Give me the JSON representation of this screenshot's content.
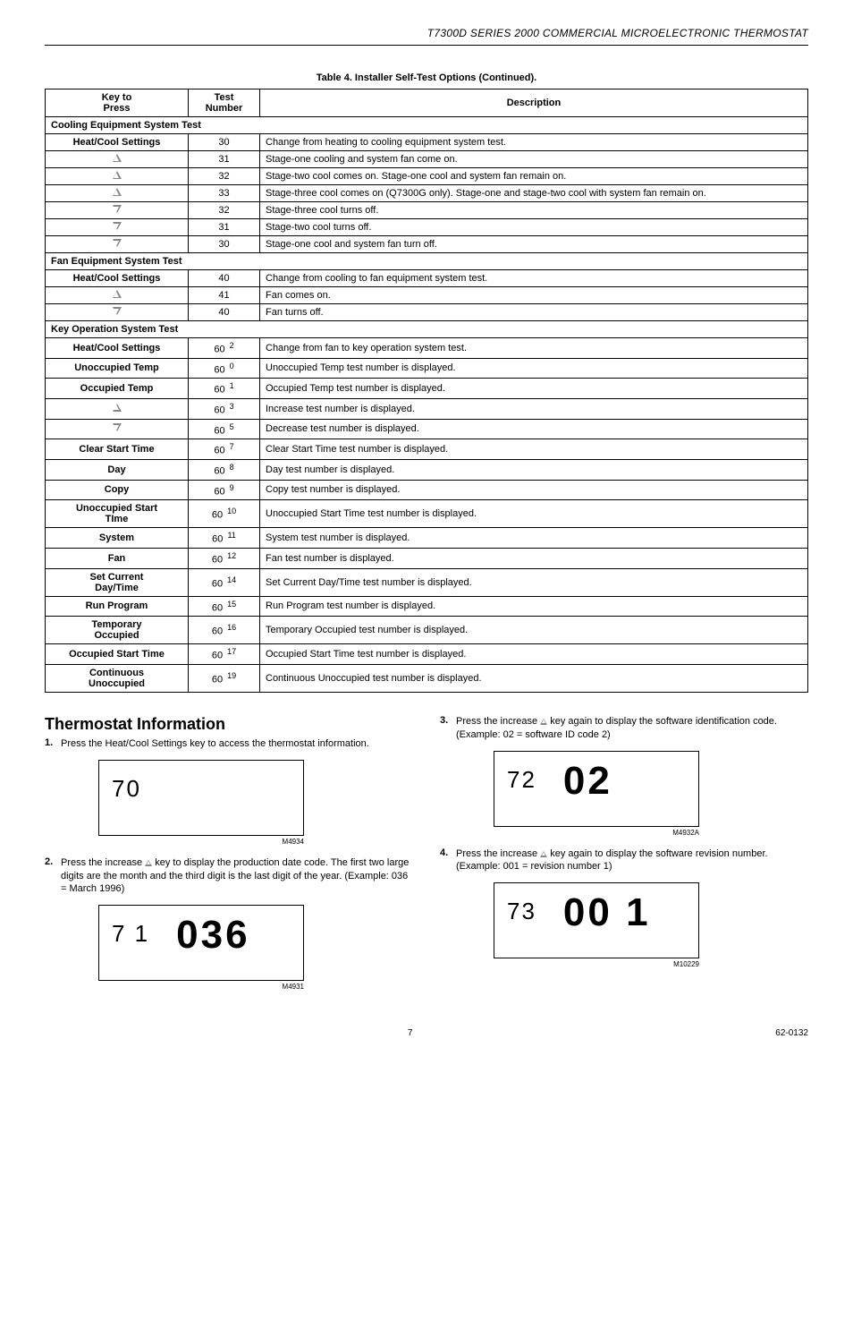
{
  "header": "T7300D SERIES 2000 COMMERCIAL MICROELECTRONIC THERMOSTAT",
  "table": {
    "caption": "Table 4. Installer Self-Test Options (Continued).",
    "headers": {
      "key": "Key to\nPress",
      "test": "Test\nNumber",
      "desc": "Description"
    },
    "sections": [
      {
        "title": "Cooling Equipment System Test",
        "rows": [
          {
            "key": "Heat/Cool Settings",
            "test": "30",
            "desc": "Change from heating to cooling equipment system test."
          },
          {
            "key": "△",
            "test": "31",
            "desc": "Stage-one cooling and system fan come on."
          },
          {
            "key": "△",
            "test": "32",
            "desc": "Stage-two cool comes on. Stage-one cool and system fan remain on."
          },
          {
            "key": "△",
            "test": "33",
            "desc": "Stage-three cool comes on (Q7300G only). Stage-one and stage-two cool with system fan remain on."
          },
          {
            "key": "▽",
            "test": "32",
            "desc": "Stage-three cool turns off."
          },
          {
            "key": "▽",
            "test": "31",
            "desc": "Stage-two cool turns off."
          },
          {
            "key": "▽",
            "test": "30",
            "desc": "Stage-one cool and system fan turn off."
          }
        ]
      },
      {
        "title": "Fan Equipment System Test",
        "rows": [
          {
            "key": "Heat/Cool Settings",
            "test": "40",
            "desc": "Change from cooling to fan equipment system test."
          },
          {
            "key": "△",
            "test": "41",
            "desc": "Fan comes on."
          },
          {
            "key": "▽",
            "test": "40",
            "desc": "Fan turns off."
          }
        ]
      },
      {
        "title": "Key Operation System Test",
        "rows": [
          {
            "key": "Heat/Cool Settings",
            "test": "60",
            "sub": "2",
            "desc": "Change from fan to key operation system test."
          },
          {
            "key": "Unoccupied Temp",
            "test": "60",
            "sub": "0",
            "desc": "Unoccupied Temp test number is displayed."
          },
          {
            "key": "Occupied Temp",
            "test": "60",
            "sub": "1",
            "desc": "Occupied Temp test number is displayed."
          },
          {
            "key": "△",
            "test": "60",
            "sub": "3",
            "desc": "Increase test number is displayed."
          },
          {
            "key": "▽",
            "test": "60",
            "sub": "5",
            "desc": "Decrease test number is displayed."
          },
          {
            "key": "Clear Start Time",
            "test": "60",
            "sub": "7",
            "desc": "Clear Start Time test number is displayed."
          },
          {
            "key": "Day",
            "test": "60",
            "sub": "8",
            "desc": "Day test number is displayed."
          },
          {
            "key": "Copy",
            "test": "60",
            "sub": "9",
            "desc": "Copy test number is displayed."
          },
          {
            "key": "Unoccupied Start\nTIme",
            "test": "60",
            "sub": "10",
            "desc": "Unoccupied Start Time test number is displayed."
          },
          {
            "key": "System",
            "test": "60",
            "sub": "11",
            "desc": "System test number is displayed."
          },
          {
            "key": "Fan",
            "test": "60",
            "sub": "12",
            "desc": "Fan test number is displayed."
          },
          {
            "key": "Set Current\nDay/Time",
            "test": "60",
            "sub": "14",
            "desc": "Set Current Day/Time test number is displayed."
          },
          {
            "key": "Run Program",
            "test": "60",
            "sub": "15",
            "desc": "Run Program test number is displayed."
          },
          {
            "key": "Temporary\nOccupied",
            "test": "60",
            "sub": "16",
            "desc": "Temporary Occupied test number is displayed."
          },
          {
            "key": "Occupied Start Time",
            "test": "60",
            "sub": "17",
            "desc": "Occupied Start Time test number is displayed."
          },
          {
            "key": "Continuous\nUnoccupied",
            "test": "60",
            "sub": "19",
            "desc": "Continuous Unoccupied test number is displayed."
          }
        ]
      }
    ]
  },
  "info": {
    "title": "Thermostat Information",
    "steps": {
      "s1": "Press the Heat/Cool Settings key to access the thermostat information.",
      "s2_a": "Press the increase ",
      "s2_b": " key to display the production date code. The first two large digits are the month and the third digit is the last digit of the year. (Example: 036 = March 1996)",
      "s3_a": "Press the increase ",
      "s3_b": " key again to display the software identification code. (Example: 02 = software ID code 2)",
      "s4_a": "Press the increase ",
      "s4_b": " key again to display the software revision number. (Example: 001 = revision number 1)"
    },
    "lcds": {
      "l1": {
        "small": "70",
        "big": "",
        "code": "M4934"
      },
      "l2": {
        "small": "7 1",
        "big": "036",
        "code": "M4931"
      },
      "l3": {
        "small": "72",
        "big": "02",
        "code": "M4932A"
      },
      "l4": {
        "small": "73",
        "big": "00 1",
        "code": "M10229"
      }
    }
  },
  "footer": {
    "page": "7",
    "doc": "62-0132"
  }
}
